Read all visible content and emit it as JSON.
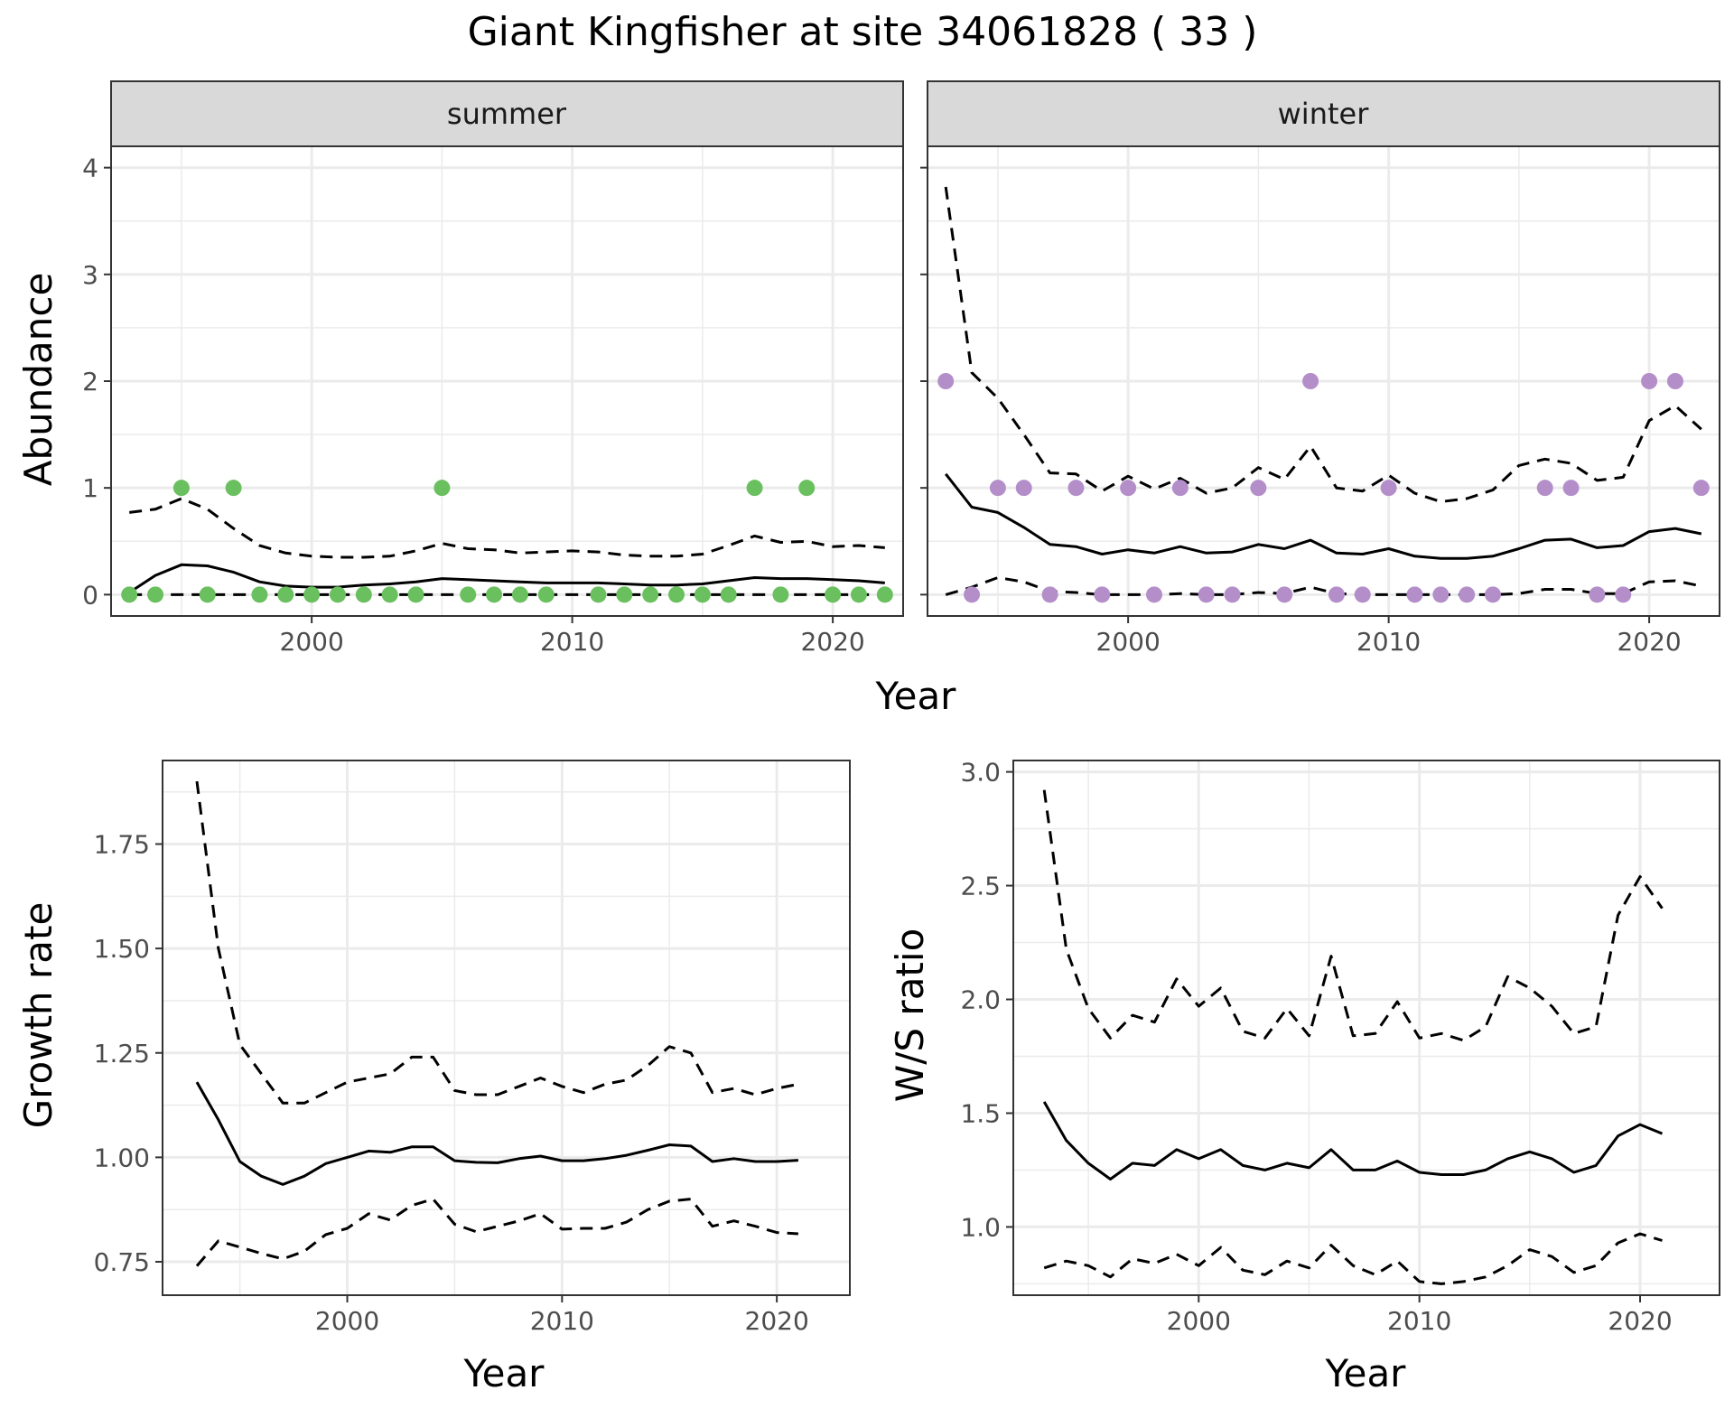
{
  "title": "Giant Kingfisher at site 34061828 ( 33 )",
  "chart_data": [
    {
      "type": "line",
      "panel": "summer",
      "xlabel": "Year",
      "ylabel": "Abundance",
      "xlim": [
        1992.3,
        2022.7
      ],
      "ylim": [
        -0.2,
        4.2
      ],
      "xticks": [
        2000,
        2010,
        2020
      ],
      "yticks": [
        0,
        1,
        2,
        3,
        4
      ],
      "grid": true,
      "x": [
        1993,
        1994,
        1995,
        1996,
        1997,
        1998,
        1999,
        2000,
        2001,
        2002,
        2003,
        2004,
        2005,
        2006,
        2007,
        2008,
        2009,
        2010,
        2011,
        2012,
        2013,
        2014,
        2015,
        2016,
        2017,
        2018,
        2019,
        2020,
        2021,
        2022
      ],
      "series": [
        {
          "role": "observed",
          "color": "#6abf5e",
          "values": [
            0,
            0,
            1,
            0,
            1,
            0,
            0,
            0,
            0,
            0,
            0,
            0,
            1,
            0,
            0,
            0,
            0,
            null,
            0,
            0,
            0,
            0,
            0,
            0,
            1,
            0,
            1,
            0,
            0,
            0
          ]
        },
        {
          "role": "fit",
          "values": [
            0.02,
            0.18,
            0.28,
            0.27,
            0.21,
            0.12,
            0.08,
            0.07,
            0.07,
            0.09,
            0.1,
            0.12,
            0.15,
            0.14,
            0.13,
            0.12,
            0.11,
            0.11,
            0.11,
            0.1,
            0.09,
            0.09,
            0.1,
            0.13,
            0.16,
            0.15,
            0.15,
            0.14,
            0.13,
            0.11
          ]
        },
        {
          "role": "upper",
          "values": [
            0.77,
            0.8,
            0.9,
            0.8,
            0.62,
            0.46,
            0.39,
            0.36,
            0.35,
            0.35,
            0.36,
            0.41,
            0.48,
            0.43,
            0.42,
            0.39,
            0.4,
            0.41,
            0.4,
            0.37,
            0.36,
            0.36,
            0.38,
            0.46,
            0.55,
            0.49,
            0.5,
            0.45,
            0.46,
            0.44
          ]
        },
        {
          "role": "lower",
          "values": [
            0,
            0,
            0,
            0,
            0,
            0,
            0,
            0,
            0,
            0,
            0,
            0,
            0,
            0,
            0,
            0,
            0,
            0,
            0,
            0,
            0,
            0,
            0,
            0,
            0,
            0,
            0,
            0,
            0,
            0
          ]
        }
      ]
    },
    {
      "type": "line",
      "panel": "winter",
      "xlabel": "Year",
      "ylabel": "Abundance",
      "xlim": [
        1992.3,
        2022.7
      ],
      "ylim": [
        -0.2,
        4.2
      ],
      "xticks": [
        2000,
        2010,
        2020
      ],
      "yticks": [
        0,
        1,
        2,
        3,
        4
      ],
      "grid": true,
      "x": [
        1993,
        1994,
        1995,
        1996,
        1997,
        1998,
        1999,
        2000,
        2001,
        2002,
        2003,
        2004,
        2005,
        2006,
        2007,
        2008,
        2009,
        2010,
        2011,
        2012,
        2013,
        2014,
        2015,
        2016,
        2017,
        2018,
        2019,
        2020,
        2021,
        2022
      ],
      "series": [
        {
          "role": "observed",
          "color": "#b48ec9",
          "values": [
            2,
            0,
            1,
            1,
            0,
            1,
            0,
            1,
            0,
            1,
            0,
            0,
            1,
            0,
            2,
            0,
            0,
            1,
            0,
            0,
            0,
            0,
            null,
            1,
            1,
            0,
            0,
            2,
            2,
            1
          ]
        },
        {
          "role": "fit",
          "values": [
            1.13,
            0.82,
            0.77,
            0.63,
            0.47,
            0.45,
            0.38,
            0.42,
            0.39,
            0.45,
            0.39,
            0.4,
            0.47,
            0.43,
            0.51,
            0.39,
            0.38,
            0.43,
            0.36,
            0.34,
            0.34,
            0.36,
            0.43,
            0.51,
            0.52,
            0.44,
            0.46,
            0.59,
            0.62,
            0.57
          ]
        },
        {
          "role": "upper",
          "values": [
            3.82,
            2.08,
            1.84,
            1.5,
            1.14,
            1.13,
            0.97,
            1.11,
            0.99,
            1.09,
            0.95,
            1.0,
            1.19,
            1.08,
            1.39,
            1.0,
            0.97,
            1.12,
            0.95,
            0.87,
            0.9,
            0.98,
            1.21,
            1.27,
            1.23,
            1.07,
            1.1,
            1.63,
            1.77,
            1.55
          ]
        },
        {
          "role": "lower",
          "values": [
            0,
            0.07,
            0.16,
            0.12,
            0.03,
            0.02,
            0,
            0,
            0,
            0.01,
            0,
            0,
            0.02,
            0.01,
            0.07,
            0.01,
            0,
            0,
            0,
            0,
            0,
            0,
            0.01,
            0.05,
            0.05,
            0.01,
            0.01,
            0.12,
            0.13,
            0.08
          ]
        }
      ]
    },
    {
      "type": "line",
      "xlabel": "Year",
      "ylabel": "Growth rate",
      "xlim": [
        1991.4,
        2023.4
      ],
      "ylim": [
        0.67,
        1.95
      ],
      "xticks": [
        2000,
        2010,
        2020
      ],
      "yticks": [
        0.75,
        1.0,
        1.25,
        1.5,
        1.75
      ],
      "grid": true,
      "x": [
        1993,
        1994,
        1995,
        1996,
        1997,
        1998,
        1999,
        2000,
        2001,
        2002,
        2003,
        2004,
        2005,
        2006,
        2007,
        2008,
        2009,
        2010,
        2011,
        2012,
        2013,
        2014,
        2015,
        2016,
        2017,
        2018,
        2019,
        2020,
        2021
      ],
      "series": [
        {
          "role": "fit",
          "values": [
            1.18,
            1.09,
            0.99,
            0.955,
            0.935,
            0.955,
            0.985,
            1.0,
            1.015,
            1.012,
            1.025,
            1.025,
            0.992,
            0.988,
            0.987,
            0.997,
            1.003,
            0.992,
            0.992,
            0.997,
            1.005,
            1.017,
            1.03,
            1.027,
            0.99,
            0.997,
            0.99,
            0.99,
            0.993
          ]
        },
        {
          "role": "upper",
          "values": [
            1.9,
            1.5,
            1.27,
            1.2,
            1.13,
            1.13,
            1.155,
            1.18,
            1.19,
            1.2,
            1.24,
            1.24,
            1.16,
            1.15,
            1.15,
            1.17,
            1.19,
            1.17,
            1.155,
            1.175,
            1.185,
            1.22,
            1.265,
            1.25,
            1.155,
            1.165,
            1.15,
            1.165,
            1.175
          ]
        },
        {
          "role": "lower",
          "values": [
            0.74,
            0.8,
            0.785,
            0.77,
            0.757,
            0.775,
            0.815,
            0.83,
            0.865,
            0.85,
            0.885,
            0.9,
            0.84,
            0.822,
            0.835,
            0.848,
            0.865,
            0.828,
            0.83,
            0.83,
            0.845,
            0.875,
            0.895,
            0.9,
            0.835,
            0.848,
            0.835,
            0.82,
            0.817
          ]
        }
      ]
    },
    {
      "type": "line",
      "xlabel": "Year",
      "ylabel": "W/S ratio",
      "xlim": [
        1991.6,
        2023.6
      ],
      "ylim": [
        0.7,
        3.05
      ],
      "xticks": [
        2000,
        2010,
        2020
      ],
      "yticks": [
        1.0,
        1.5,
        2.0,
        2.5,
        3.0
      ],
      "grid": true,
      "x": [
        1993,
        1994,
        1995,
        1996,
        1997,
        1998,
        1999,
        2000,
        2001,
        2002,
        2003,
        2004,
        2005,
        2006,
        2007,
        2008,
        2009,
        2010,
        2011,
        2012,
        2013,
        2014,
        2015,
        2016,
        2017,
        2018,
        2019,
        2020,
        2021
      ],
      "series": [
        {
          "role": "fit",
          "values": [
            1.55,
            1.38,
            1.28,
            1.21,
            1.28,
            1.27,
            1.34,
            1.3,
            1.34,
            1.27,
            1.25,
            1.28,
            1.26,
            1.34,
            1.25,
            1.25,
            1.29,
            1.24,
            1.23,
            1.23,
            1.25,
            1.3,
            1.33,
            1.3,
            1.24,
            1.27,
            1.4,
            1.45,
            1.41
          ]
        },
        {
          "role": "upper",
          "values": [
            2.92,
            2.22,
            1.96,
            1.83,
            1.93,
            1.9,
            2.09,
            1.97,
            2.05,
            1.86,
            1.83,
            1.96,
            1.84,
            2.19,
            1.84,
            1.85,
            1.99,
            1.83,
            1.85,
            1.82,
            1.88,
            2.1,
            2.05,
            1.97,
            1.85,
            1.88,
            2.37,
            2.54,
            2.4
          ]
        },
        {
          "role": "lower",
          "values": [
            0.82,
            0.85,
            0.83,
            0.78,
            0.86,
            0.84,
            0.88,
            0.83,
            0.91,
            0.81,
            0.79,
            0.85,
            0.82,
            0.92,
            0.83,
            0.79,
            0.85,
            0.76,
            0.75,
            0.76,
            0.78,
            0.83,
            0.9,
            0.87,
            0.8,
            0.83,
            0.93,
            0.97,
            0.94
          ]
        }
      ]
    }
  ],
  "strips": {
    "summer": "summer",
    "winter": "winter"
  },
  "labels": {
    "top_xlabel": "Year",
    "top_ylabel": "Abundance",
    "bl_xlabel": "Year",
    "bl_ylabel": "Growth rate",
    "br_xlabel": "Year",
    "br_ylabel": "W/S ratio"
  }
}
